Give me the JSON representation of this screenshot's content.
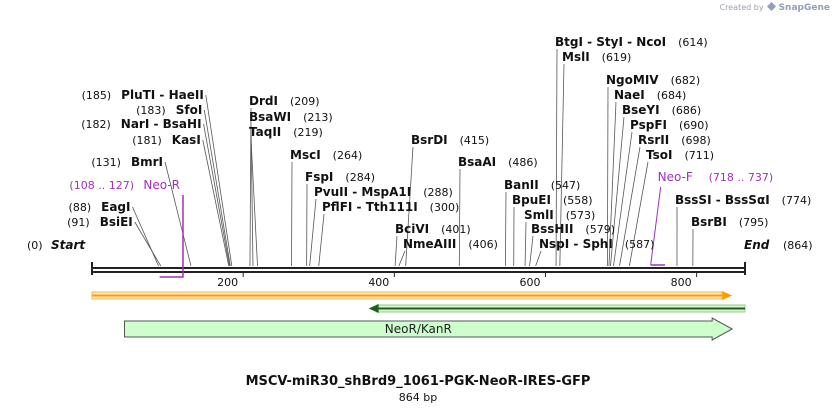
{
  "app": {
    "credit": "Created by",
    "brand": "SnapGene"
  },
  "map": {
    "title": "MSCV-miR30_shBrd9_1061-PGK-NeoR-IRES-GFP",
    "size_label": "864 bp",
    "length": 864,
    "start_label": "Start",
    "end_label": "End",
    "start_pos": "(0)",
    "end_pos": "(864)",
    "ticks": [
      200,
      400,
      600,
      800
    ],
    "colors": {
      "enzyme": "#111111",
      "primer": "#a030c0",
      "feature_fill": "#ccffcc",
      "orf_fill": "#ff9d00",
      "orf2_fill": "#2e8b2e",
      "backbone": "#222222"
    }
  },
  "enzymes": [
    {
      "names": [
        "BsiEI"
      ],
      "pos": 91
    },
    {
      "names": [
        "EagI"
      ],
      "pos": 88
    },
    {
      "names": [
        "BmrI"
      ],
      "pos": 131
    },
    {
      "names": [
        "KasI"
      ],
      "pos": 181
    },
    {
      "names": [
        "NarI",
        "BsaHI"
      ],
      "pos": 182
    },
    {
      "names": [
        "SfoI"
      ],
      "pos": 183
    },
    {
      "names": [
        "PluTI",
        "HaeII"
      ],
      "pos": 185
    },
    {
      "names": [
        "DrdI"
      ],
      "pos": 209
    },
    {
      "names": [
        "BsaWI"
      ],
      "pos": 213
    },
    {
      "names": [
        "TaqII"
      ],
      "pos": 219
    },
    {
      "names": [
        "MscI"
      ],
      "pos": 264
    },
    {
      "names": [
        "FspI"
      ],
      "pos": 284
    },
    {
      "names": [
        "PvuII",
        "MspA1I"
      ],
      "pos": 288
    },
    {
      "names": [
        "PflFI",
        "Tth111I"
      ],
      "pos": 300
    },
    {
      "names": [
        "BciVI"
      ],
      "pos": 401
    },
    {
      "names": [
        "NmeAIII"
      ],
      "pos": 406
    },
    {
      "names": [
        "BsrDI"
      ],
      "pos": 415
    },
    {
      "names": [
        "BsaAI"
      ],
      "pos": 486
    },
    {
      "names": [
        "BanII"
      ],
      "pos": 547
    },
    {
      "names": [
        "BpuEI"
      ],
      "pos": 558
    },
    {
      "names": [
        "SmlI"
      ],
      "pos": 573
    },
    {
      "names": [
        "BssHII"
      ],
      "pos": 579
    },
    {
      "names": [
        "NspI",
        "SphI"
      ],
      "pos": 587
    },
    {
      "names": [
        "BtgI",
        "StyI",
        "NcoI"
      ],
      "pos": 614
    },
    {
      "names": [
        "MslI"
      ],
      "pos": 619
    },
    {
      "names": [
        "NgoMIV"
      ],
      "pos": 682
    },
    {
      "names": [
        "NaeI"
      ],
      "pos": 684
    },
    {
      "names": [
        "BseYI"
      ],
      "pos": 686
    },
    {
      "names": [
        "PspFI"
      ],
      "pos": 690
    },
    {
      "names": [
        "RsrII"
      ],
      "pos": 698
    },
    {
      "names": [
        "TsoI"
      ],
      "pos": 711
    },
    {
      "names": [
        "BssSI",
        "BssSαI"
      ],
      "pos": 774
    },
    {
      "names": [
        "BsrBI"
      ],
      "pos": 795
    }
  ],
  "primers": [
    {
      "name": "Neo-R",
      "range": "(108 .. 127)",
      "start": 108,
      "end": 127,
      "direction": "reverse"
    },
    {
      "name": "Neo-F",
      "range": "(718 .. 737)",
      "start": 718,
      "end": 737,
      "direction": "forward"
    }
  ],
  "features": [
    {
      "name": "ORF (forward)",
      "start": 0,
      "end": 847,
      "type": "orf",
      "direction": "forward",
      "show_label": false
    },
    {
      "name": "ORF (reverse)",
      "start": 366,
      "end": 864,
      "type": "orf2",
      "direction": "reverse",
      "show_label": false
    },
    {
      "name": "NeoR/KanR",
      "start": 43,
      "end": 847,
      "type": "feature",
      "direction": "forward",
      "show_label": true
    }
  ]
}
